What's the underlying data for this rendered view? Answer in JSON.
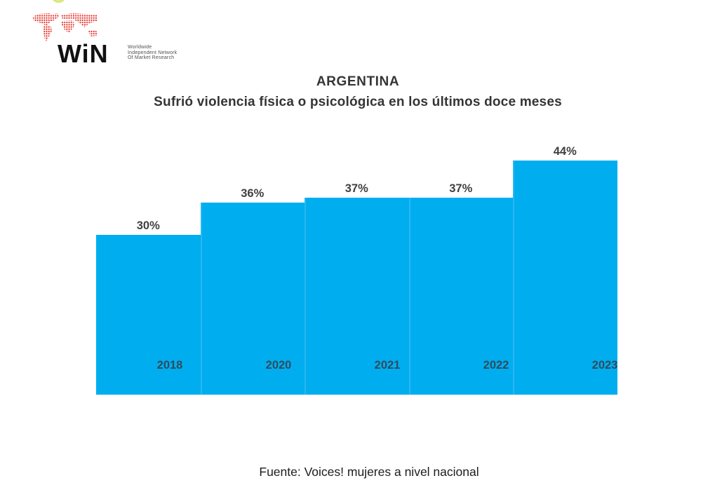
{
  "logo": {
    "brand": "WiN",
    "tagline_lines": [
      "Worldwide",
      "Independent Network",
      "Of Market Research"
    ],
    "map_color": "#e2231a"
  },
  "chart_data": {
    "type": "bar",
    "title": "ARGENTINA",
    "subtitle": "Sufrió violencia física o psicológica en los últimos doce meses",
    "categories": [
      "2018",
      "2020",
      "2021",
      "2022",
      "2023"
    ],
    "values": [
      30,
      36,
      37,
      37,
      44
    ],
    "value_labels": [
      "30%",
      "36%",
      "37%",
      "37%",
      "44%"
    ],
    "bar_color": "#00aeef",
    "separator_color": "#2ab6f2",
    "value_label_color": "#404040",
    "year_label_color": "#2e4c5e",
    "ylim": [
      0,
      50
    ],
    "grid": false,
    "legend": false,
    "xlabel": "",
    "ylabel": ""
  },
  "footer": {
    "source": "Fuente: Voices! mujeres a nivel nacional"
  }
}
